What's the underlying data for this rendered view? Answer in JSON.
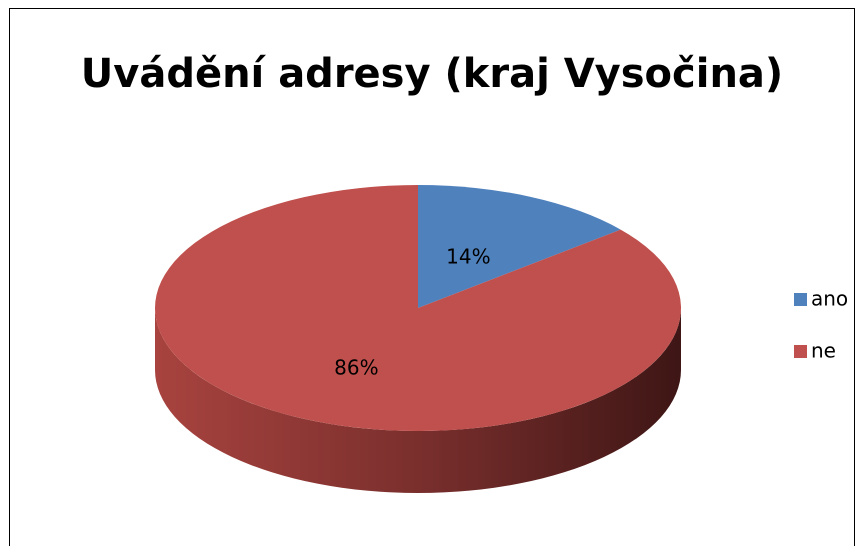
{
  "chart_data": {
    "type": "pie",
    "title": "Uvádění adresy (kraj Vysočina)",
    "categories": [
      "ano",
      "ne"
    ],
    "values": [
      14,
      86
    ],
    "value_labels": [
      "14%",
      "86%"
    ],
    "colors": [
      "#4f81bd",
      "#c0504d"
    ],
    "legend": "right"
  }
}
